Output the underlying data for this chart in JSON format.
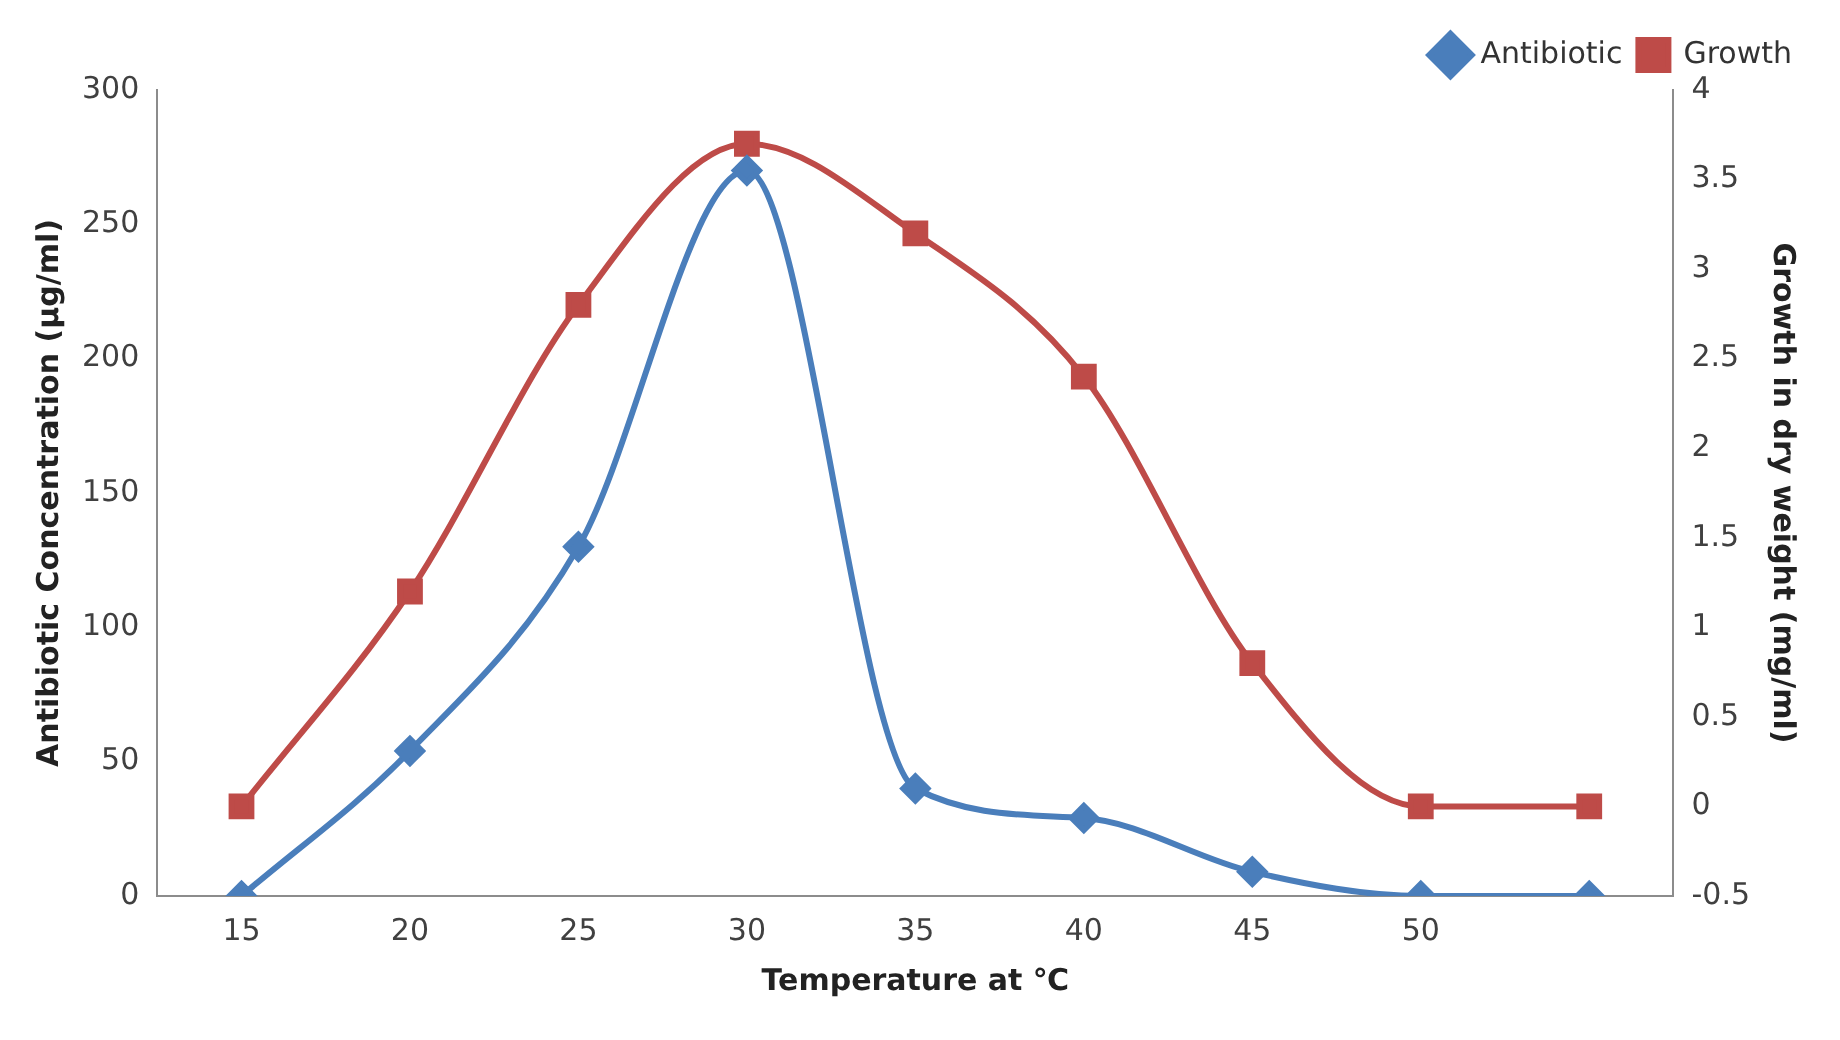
{
  "chart_data": {
    "type": "line",
    "xlabel": "Temperature at ℃",
    "ylabel": "Antibiotic Concentration (µg/ml)",
    "y2label": "Growth in dry weight (mg/ml)",
    "categories": [
      "15",
      "20",
      "25",
      "30",
      "35",
      "40",
      "45",
      "50",
      null
    ],
    "series": [
      {
        "name": "Antibiotic",
        "color": "#4a7ebb",
        "marker": "diamond",
        "values": [
          0,
          54,
          130,
          270,
          40,
          29,
          9,
          0,
          0
        ]
      },
      {
        "name": "Growth",
        "color": "#be4b48",
        "marker": "square",
        "axis": "y2",
        "values": [
          0,
          1.2,
          2.8,
          3.7,
          3.2,
          2.4,
          0.8,
          0,
          0
        ]
      }
    ],
    "ylim": [
      0,
      300
    ],
    "yticks": [
      0,
      50,
      100,
      150,
      200,
      250,
      300
    ],
    "y2lim": [
      -0.5,
      4
    ],
    "y2ticks": [
      -0.5,
      0,
      0.5,
      1,
      1.5,
      2,
      2.5,
      3,
      3.5,
      4
    ],
    "grid": false,
    "legend": "top right",
    "line_style": "solid"
  }
}
